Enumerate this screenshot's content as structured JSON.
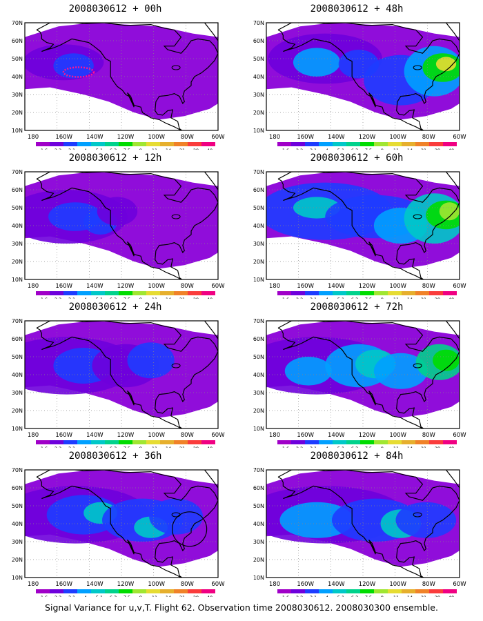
{
  "panels": [
    {
      "title": "2008030612 + 00h",
      "zones": [
        [
          -152,
          48,
          24,
          10,
          1
        ],
        [
          -146,
          46,
          12,
          7,
          2
        ]
      ],
      "has_target_ellipse": true,
      "has_circle": false
    },
    {
      "title": "2008030612 + 48h",
      "zones": [
        [
          -140,
          50,
          34,
          14,
          1
        ],
        [
          -145,
          48,
          14,
          8,
          3
        ],
        [
          -120,
          47,
          12,
          8,
          2
        ],
        [
          -95,
          38,
          22,
          14,
          2
        ],
        [
          -75,
          43,
          18,
          14,
          3
        ],
        [
          -70,
          45,
          12,
          8,
          6
        ],
        [
          -68,
          47,
          6,
          4,
          8
        ]
      ],
      "has_target_ellipse": false,
      "has_circle": false
    },
    {
      "title": "2008030612 + 12h",
      "zones": [
        [
          -150,
          45,
          36,
          15,
          1
        ],
        [
          -145,
          45,
          16,
          8,
          2
        ],
        [
          -130,
          42,
          10,
          7,
          2
        ],
        [
          -120,
          48,
          12,
          8,
          1
        ]
      ],
      "has_target_ellipse": false,
      "has_circle": false
    },
    {
      "title": "2008030612 + 60h",
      "zones": [
        [
          -140,
          48,
          40,
          16,
          2
        ],
        [
          -145,
          50,
          14,
          6,
          4
        ],
        [
          -110,
          45,
          30,
          12,
          2
        ],
        [
          -95,
          40,
          16,
          10,
          3
        ],
        [
          -75,
          44,
          18,
          14,
          4
        ],
        [
          -68,
          46,
          12,
          8,
          6
        ],
        [
          -66,
          48,
          6,
          5,
          7
        ]
      ],
      "has_target_ellipse": false,
      "has_circle": false
    },
    {
      "title": "2008030612 + 24h",
      "zones": [
        [
          -150,
          45,
          42,
          16,
          1
        ],
        [
          -140,
          45,
          18,
          10,
          2
        ],
        [
          -115,
          45,
          20,
          12,
          1
        ],
        [
          -100,
          48,
          14,
          10,
          2
        ]
      ],
      "has_target_ellipse": false,
      "has_circle": false
    },
    {
      "title": "2008030612 + 72h",
      "zones": [
        [
          -145,
          45,
          44,
          16,
          1
        ],
        [
          -150,
          42,
          14,
          8,
          3
        ],
        [
          -120,
          45,
          20,
          12,
          3
        ],
        [
          -110,
          46,
          12,
          8,
          4
        ],
        [
          -95,
          42,
          16,
          10,
          3
        ],
        [
          -72,
          47,
          14,
          10,
          5
        ],
        [
          -68,
          48,
          8,
          6,
          6
        ]
      ],
      "has_target_ellipse": false,
      "has_circle": false
    },
    {
      "title": "2008030612 + 36h",
      "zones": [
        [
          -145,
          45,
          44,
          16,
          1
        ],
        [
          -140,
          45,
          22,
          11,
          2
        ],
        [
          -130,
          46,
          10,
          6,
          4
        ],
        [
          -105,
          42,
          24,
          12,
          2
        ],
        [
          -100,
          38,
          10,
          6,
          4
        ],
        [
          -85,
          44,
          16,
          10,
          2
        ]
      ],
      "has_target_ellipse": false,
      "has_circle": true
    },
    {
      "title": "2008030612 + 84h",
      "zones": [
        [
          -140,
          45,
          48,
          16,
          1
        ],
        [
          -145,
          42,
          22,
          10,
          3
        ],
        [
          -110,
          42,
          26,
          12,
          2
        ],
        [
          -95,
          40,
          12,
          8,
          4
        ],
        [
          -80,
          42,
          18,
          10,
          2
        ]
      ],
      "has_target_ellipse": false,
      "has_circle": false
    }
  ],
  "axis": {
    "lon_labels": [
      "180",
      "160W",
      "140W",
      "120W",
      "100W",
      "80W",
      "60W"
    ],
    "lat_labels": [
      "10N",
      "20N",
      "30N",
      "40N",
      "50N",
      "60N",
      "70N"
    ]
  },
  "colorbar": {
    "labels": [
      "1.6",
      "2.2",
      "3.1",
      "4",
      "5.1",
      "6.3",
      "7.5",
      "9",
      "11",
      "14",
      "21",
      "29",
      "40"
    ],
    "colors": [
      "#a000c8",
      "#6e00dc",
      "#1e3cff",
      "#00a0ff",
      "#00c8c8",
      "#00d28c",
      "#00dc00",
      "#a0e632",
      "#e6dc32",
      "#e6af2d",
      "#f08228",
      "#fa3c3c",
      "#f00082"
    ],
    "base_color": "#8a00d8"
  },
  "caption": "Signal Variance for u,v,T. Flight 62. Observation time 2008030612. 2008030300 ensemble."
}
